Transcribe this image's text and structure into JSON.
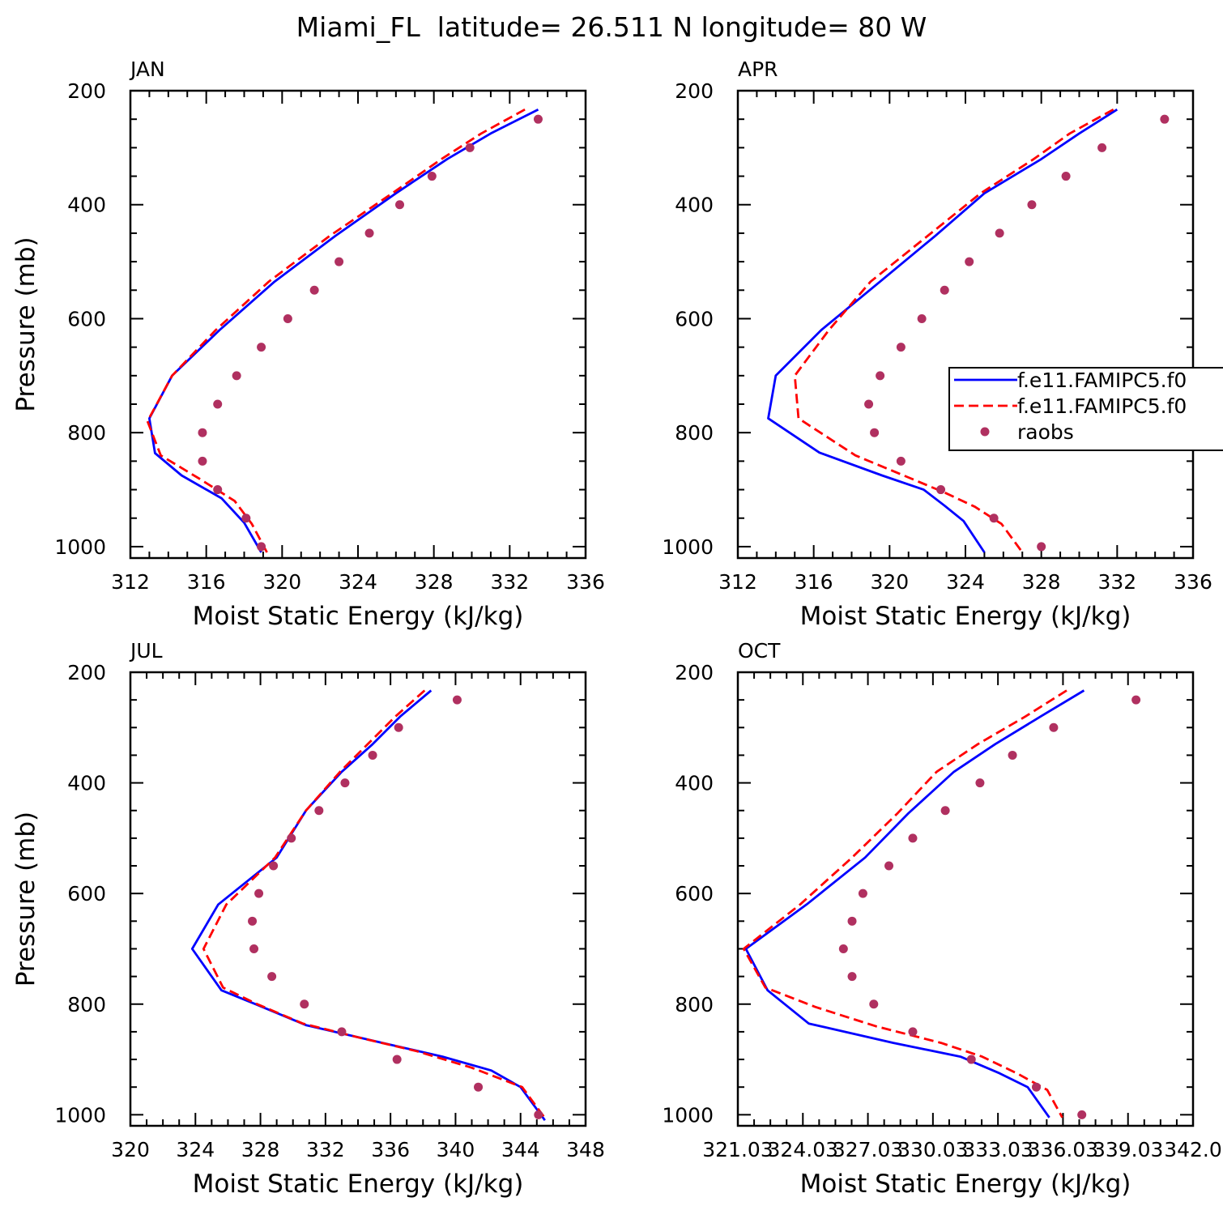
{
  "figure": {
    "title": "Miami_FL  latitude= 26.511 N longitude= 80 W"
  },
  "legend": {
    "entries": [
      {
        "label": "f.e11.FAMIPC5.f0",
        "style": "solid",
        "color": "#0000ff"
      },
      {
        "label": "f.e11.FAMIPC5.f0",
        "style": "dashed",
        "color": "#ff0000"
      },
      {
        "label": "raobs",
        "style": "dot",
        "color": "#b03060"
      }
    ]
  },
  "colors": {
    "model1": "#0000ff",
    "model2": "#ff0000",
    "raobs": "#b03060"
  },
  "chart_data": [
    {
      "type": "line",
      "panel": "JAN",
      "title": "JAN",
      "xlabel": "Moist Static Energy (kJ/kg)",
      "ylabel": "Pressure (mb)",
      "xlim": [
        312,
        336
      ],
      "ylim": [
        1020,
        200
      ],
      "xticks": [
        312,
        316,
        320,
        324,
        328,
        332,
        336
      ],
      "xtick_labels": [
        "312",
        "316",
        "320",
        "324",
        "328",
        "332",
        "336"
      ],
      "yticks": [
        200,
        400,
        600,
        800,
        1000
      ],
      "ytick_labels": [
        "200",
        "400",
        "600",
        "800",
        "1000"
      ],
      "series": [
        {
          "name": "f.e11.FAMIPC5.f0",
          "style": "solid",
          "points": [
            [
              333.5,
              233
            ],
            [
              331.0,
              275
            ],
            [
              328.7,
              320
            ],
            [
              326.0,
              380
            ],
            [
              322.8,
              455
            ],
            [
              319.6,
              535
            ],
            [
              316.7,
              620
            ],
            [
              314.2,
              700
            ],
            [
              313.0,
              775
            ],
            [
              313.3,
              836
            ],
            [
              314.7,
              875
            ],
            [
              316.8,
              915
            ],
            [
              318.0,
              958
            ],
            [
              318.9,
              1010
            ]
          ]
        },
        {
          "name": "f.e11.FAMIPC5.f0",
          "style": "dashed",
          "points": [
            [
              332.8,
              233
            ],
            [
              330.5,
              275
            ],
            [
              328.4,
              320
            ],
            [
              325.8,
              380
            ],
            [
              322.5,
              455
            ],
            [
              319.3,
              535
            ],
            [
              316.5,
              620
            ],
            [
              314.2,
              700
            ],
            [
              312.9,
              780
            ],
            [
              313.6,
              840
            ],
            [
              315.6,
              880
            ],
            [
              317.5,
              920
            ],
            [
              318.4,
              960
            ],
            [
              319.2,
              1010
            ]
          ]
        },
        {
          "name": "raobs",
          "style": "dot",
          "points": [
            [
              333.5,
              250
            ],
            [
              329.9,
              300
            ],
            [
              327.9,
              350
            ],
            [
              326.2,
              400
            ],
            [
              324.6,
              450
            ],
            [
              323.0,
              500
            ],
            [
              321.7,
              550
            ],
            [
              320.3,
              600
            ],
            [
              318.9,
              650
            ],
            [
              317.6,
              700
            ],
            [
              316.6,
              750
            ],
            [
              315.8,
              800
            ],
            [
              315.8,
              850
            ],
            [
              316.6,
              900
            ],
            [
              318.1,
              950
            ],
            [
              318.9,
              1000
            ]
          ]
        }
      ]
    },
    {
      "type": "line",
      "panel": "APR",
      "title": "APR",
      "xlabel": "Moist Static Energy (kJ/kg)",
      "ylabel": "",
      "xlim": [
        312,
        336
      ],
      "ylim": [
        1020,
        200
      ],
      "xticks": [
        312,
        316,
        320,
        324,
        328,
        332,
        336
      ],
      "xtick_labels": [
        "312",
        "316",
        "320",
        "324",
        "328",
        "332",
        "336"
      ],
      "yticks": [
        200,
        400,
        600,
        800,
        1000
      ],
      "ytick_labels": [
        "200",
        "400",
        "600",
        "800",
        "1000"
      ],
      "series": [
        {
          "name": "f.e11.FAMIPC5.f0",
          "style": "solid",
          "points": [
            [
              332.0,
              233
            ],
            [
              330.0,
              275
            ],
            [
              328.0,
              320
            ],
            [
              325.0,
              380
            ],
            [
              322.4,
              455
            ],
            [
              319.5,
              535
            ],
            [
              316.4,
              620
            ],
            [
              314.0,
              700
            ],
            [
              313.6,
              775
            ],
            [
              316.3,
              835
            ],
            [
              319.6,
              875
            ],
            [
              321.8,
              900
            ],
            [
              322.9,
              928
            ],
            [
              323.9,
              955
            ],
            [
              325.0,
              1010
            ]
          ]
        },
        {
          "name": "f.e11.FAMIPC5.f0",
          "style": "dashed",
          "points": [
            [
              331.8,
              233
            ],
            [
              329.5,
              275
            ],
            [
              327.6,
              320
            ],
            [
              324.8,
              380
            ],
            [
              322.0,
              455
            ],
            [
              319.0,
              535
            ],
            [
              316.8,
              620
            ],
            [
              315.0,
              700
            ],
            [
              315.2,
              775
            ],
            [
              318.2,
              840
            ],
            [
              321.1,
              880
            ],
            [
              322.9,
              905
            ],
            [
              324.5,
              930
            ],
            [
              325.9,
              960
            ],
            [
              327.0,
              1010
            ]
          ]
        },
        {
          "name": "raobs",
          "style": "dot",
          "points": [
            [
              334.5,
              250
            ],
            [
              331.2,
              300
            ],
            [
              329.3,
              350
            ],
            [
              327.5,
              400
            ],
            [
              325.8,
              450
            ],
            [
              324.2,
              500
            ],
            [
              322.9,
              550
            ],
            [
              321.7,
              600
            ],
            [
              320.6,
              650
            ],
            [
              319.5,
              700
            ],
            [
              318.9,
              750
            ],
            [
              319.2,
              800
            ],
            [
              320.6,
              850
            ],
            [
              322.7,
              900
            ],
            [
              325.5,
              950
            ],
            [
              328.0,
              1000
            ]
          ]
        }
      ]
    },
    {
      "type": "line",
      "panel": "JUL",
      "title": "JUL",
      "xlabel": "Moist Static Energy (kJ/kg)",
      "ylabel": "Pressure (mb)",
      "xlim": [
        320,
        348
      ],
      "ylim": [
        1020,
        200
      ],
      "xticks": [
        320,
        324,
        328,
        332,
        336,
        340,
        344,
        348
      ],
      "xtick_labels": [
        "320",
        "324",
        "328",
        "332",
        "336",
        "340",
        "344",
        "348"
      ],
      "yticks": [
        200,
        400,
        600,
        800,
        1000
      ],
      "ytick_labels": [
        "200",
        "400",
        "600",
        "800",
        "1000"
      ],
      "series": [
        {
          "name": "f.e11.FAMIPC5.f0",
          "style": "solid",
          "points": [
            [
              338.5,
              233
            ],
            [
              336.6,
              280
            ],
            [
              334.9,
              330
            ],
            [
              333.0,
              380
            ],
            [
              330.8,
              450
            ],
            [
              329.0,
              535
            ],
            [
              325.4,
              620
            ],
            [
              323.8,
              700
            ],
            [
              325.6,
              775
            ],
            [
              327.7,
              800
            ],
            [
              330.8,
              838
            ],
            [
              335.5,
              870
            ],
            [
              339.2,
              895
            ],
            [
              342.2,
              920
            ],
            [
              344.0,
              950
            ],
            [
              345.5,
              1010
            ]
          ]
        },
        {
          "name": "f.e11.FAMIPC5.f0",
          "style": "dashed",
          "points": [
            [
              338.1,
              233
            ],
            [
              336.3,
              280
            ],
            [
              334.6,
              330
            ],
            [
              332.9,
              380
            ],
            [
              330.8,
              450
            ],
            [
              328.9,
              535
            ],
            [
              325.9,
              620
            ],
            [
              324.5,
              700
            ],
            [
              325.7,
              770
            ],
            [
              327.8,
              800
            ],
            [
              330.6,
              835
            ],
            [
              334.0,
              860
            ],
            [
              337.6,
              885
            ],
            [
              341.0,
              915
            ],
            [
              344.1,
              950
            ],
            [
              345.6,
              1010
            ]
          ]
        },
        {
          "name": "raobs",
          "style": "dot",
          "points": [
            [
              340.1,
              250
            ],
            [
              336.5,
              300
            ],
            [
              334.9,
              350
            ],
            [
              333.2,
              400
            ],
            [
              331.6,
              450
            ],
            [
              329.9,
              500
            ],
            [
              328.8,
              550
            ],
            [
              327.9,
              600
            ],
            [
              327.5,
              650
            ],
            [
              327.6,
              700
            ],
            [
              328.7,
              750
            ],
            [
              330.7,
              800
            ],
            [
              333.0,
              850
            ],
            [
              336.4,
              900
            ],
            [
              341.4,
              950
            ],
            [
              345.1,
              1000
            ]
          ]
        }
      ]
    },
    {
      "type": "line",
      "panel": "OCT",
      "title": "OCT",
      "xlabel": "Moist Static Energy (kJ/kg)",
      "ylabel": "",
      "xlim": [
        321.03,
        342.03
      ],
      "ylim": [
        1020,
        200
      ],
      "xticks": [
        321.03,
        324.03,
        327.03,
        330.03,
        333.03,
        336.03,
        339.03,
        342.03
      ],
      "xtick_labels": [
        "321.03",
        "324.03",
        "327.03",
        "330.03",
        "333.03",
        "336.03",
        "339.03",
        "342.0"
      ],
      "yticks": [
        200,
        400,
        600,
        800,
        1000
      ],
      "ytick_labels": [
        "200",
        "400",
        "600",
        "800",
        "1000"
      ],
      "series": [
        {
          "name": "f.e11.FAMIPC5.f0",
          "style": "solid",
          "points": [
            [
              337.0,
              233
            ],
            [
              335.0,
              280
            ],
            [
              332.9,
              330
            ],
            [
              331.0,
              380
            ],
            [
              328.9,
              455
            ],
            [
              326.9,
              535
            ],
            [
              324.2,
              620
            ],
            [
              321.4,
              700
            ],
            [
              322.4,
              775
            ],
            [
              324.3,
              835
            ],
            [
              328.2,
              870
            ],
            [
              331.3,
              895
            ],
            [
              333.1,
              925
            ],
            [
              334.4,
              950
            ],
            [
              335.4,
              1005
            ]
          ]
        },
        {
          "name": "f.e11.FAMIPC5.f0",
          "style": "dashed",
          "points": [
            [
              336.2,
              233
            ],
            [
              334.3,
              280
            ],
            [
              332.1,
              330
            ],
            [
              330.2,
              380
            ],
            [
              328.4,
              455
            ],
            [
              326.3,
              535
            ],
            [
              323.9,
              620
            ],
            [
              321.3,
              700
            ],
            [
              322.3,
              770
            ],
            [
              324.6,
              805
            ],
            [
              327.4,
              840
            ],
            [
              330.4,
              870
            ],
            [
              332.3,
              895
            ],
            [
              333.9,
              925
            ],
            [
              335.3,
              955
            ],
            [
              336.0,
              1005
            ]
          ]
        },
        {
          "name": "raobs",
          "style": "dot",
          "points": [
            [
              339.4,
              250
            ],
            [
              335.6,
              300
            ],
            [
              333.7,
              350
            ],
            [
              332.2,
              400
            ],
            [
              330.6,
              450
            ],
            [
              329.1,
              500
            ],
            [
              328.0,
              550
            ],
            [
              326.8,
              600
            ],
            [
              326.3,
              650
            ],
            [
              325.9,
              700
            ],
            [
              326.3,
              750
            ],
            [
              327.3,
              800
            ],
            [
              329.1,
              850
            ],
            [
              331.8,
              900
            ],
            [
              334.8,
              950
            ],
            [
              336.9,
              1000
            ]
          ]
        }
      ]
    }
  ]
}
